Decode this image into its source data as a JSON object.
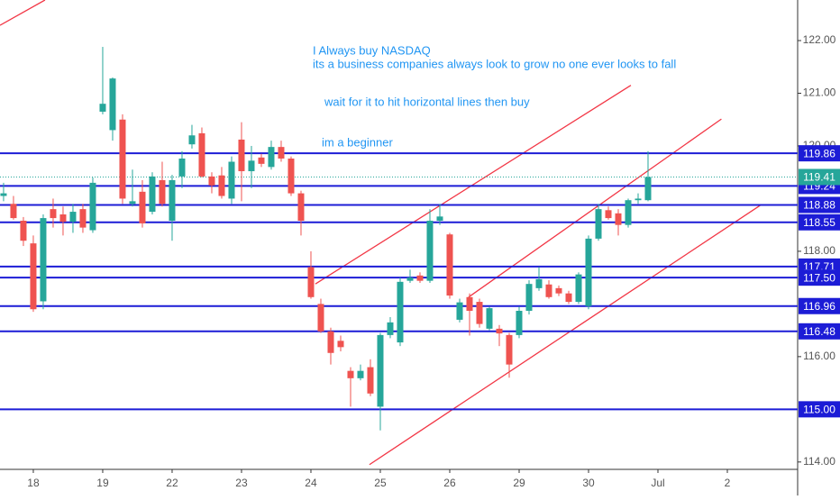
{
  "chart_data": {
    "type": "candlestick",
    "annotations": [
      "I Always buy NASDAQ",
      "its a business companies always look to grow no one ever looks to fall",
      "wait for it to hit horizontal lines then buy",
      "im a beginner"
    ],
    "x": [
      -3,
      -2,
      -1,
      0,
      1,
      2,
      3,
      4,
      5,
      6,
      7,
      8,
      9,
      10,
      11,
      12,
      13,
      14,
      15,
      16,
      17,
      18,
      19,
      20,
      21,
      22,
      23,
      24,
      25,
      26,
      27,
      28,
      29,
      30,
      31,
      32,
      33,
      34,
      35,
      36,
      37,
      38,
      39,
      40,
      41,
      42,
      43,
      44,
      45,
      46,
      47,
      48,
      49,
      50,
      51,
      52,
      53,
      54,
      55,
      56,
      57,
      58,
      59,
      60,
      61,
      62
    ],
    "open": [
      119.05,
      118.9,
      118.58,
      118.15,
      117.05,
      118.8,
      118.7,
      118.56,
      118.8,
      118.4,
      120.65,
      120.3,
      120.5,
      118.9,
      119.13,
      118.75,
      119.35,
      118.58,
      119.42,
      120.03,
      120.24,
      119.42,
      119.44,
      119.0,
      120.12,
      119.52,
      119.78,
      119.6,
      119.98,
      119.76,
      119.1,
      117.7,
      117.0,
      116.48,
      116.3,
      115.73,
      115.59,
      115.8,
      115.05,
      116.41,
      116.27,
      117.44,
      117.54,
      117.44,
      118.58,
      118.32,
      116.7,
      117.13,
      117.04,
      116.53,
      116.53,
      116.41,
      116.41,
      116.87,
      117.3,
      117.37,
      117.3,
      117.2,
      117.04,
      116.96,
      118.24,
      118.78,
      118.72,
      118.5,
      118.97,
      118.97
    ],
    "high": [
      119.3,
      119.05,
      118.65,
      118.3,
      118.7,
      119.0,
      118.85,
      118.9,
      118.9,
      119.4,
      121.88,
      121.3,
      120.6,
      119.55,
      119.35,
      119.5,
      119.7,
      119.45,
      119.9,
      120.4,
      120.35,
      119.5,
      119.6,
      119.8,
      120.45,
      120.0,
      119.85,
      120.1,
      120.1,
      119.8,
      119.15,
      118.0,
      117.1,
      116.55,
      116.4,
      115.8,
      115.85,
      115.95,
      116.45,
      116.75,
      117.5,
      117.65,
      117.6,
      118.8,
      118.9,
      118.35,
      117.1,
      117.2,
      117.1,
      116.95,
      116.6,
      116.45,
      116.95,
      117.45,
      117.7,
      117.45,
      117.35,
      117.25,
      117.6,
      118.3,
      118.9,
      118.85,
      118.8,
      119.0,
      119.1,
      119.9
    ],
    "low": [
      118.95,
      118.6,
      118.1,
      116.85,
      116.9,
      118.45,
      118.3,
      118.35,
      118.35,
      118.35,
      120.6,
      120.1,
      118.9,
      118.85,
      118.45,
      118.7,
      118.85,
      118.2,
      119.2,
      119.95,
      119.4,
      119.1,
      119.0,
      118.9,
      118.95,
      119.2,
      119.6,
      119.55,
      119.7,
      119.05,
      118.3,
      117.1,
      116.45,
      115.85,
      116.1,
      115.05,
      115.55,
      115.25,
      114.6,
      116.35,
      116.2,
      117.4,
      117.4,
      117.4,
      118.5,
      117.1,
      116.65,
      116.4,
      116.55,
      116.5,
      116.2,
      115.6,
      116.35,
      116.8,
      117.25,
      117.1,
      117.15,
      117.0,
      117.0,
      116.9,
      118.2,
      118.6,
      118.3,
      118.45,
      118.9,
      118.95
    ],
    "close": [
      119.1,
      118.63,
      118.2,
      116.9,
      118.63,
      118.63,
      118.56,
      118.75,
      118.45,
      119.3,
      120.8,
      121.28,
      119.0,
      118.95,
      118.53,
      119.42,
      118.9,
      119.35,
      119.76,
      120.2,
      119.42,
      119.25,
      119.05,
      119.7,
      119.52,
      119.72,
      119.66,
      119.98,
      119.76,
      119.1,
      118.58,
      117.13,
      116.48,
      116.07,
      116.18,
      115.59,
      115.73,
      115.3,
      116.41,
      116.65,
      117.42,
      117.5,
      117.44,
      118.58,
      118.66,
      117.16,
      117.03,
      116.87,
      116.62,
      116.92,
      116.44,
      115.85,
      116.87,
      117.38,
      117.47,
      117.13,
      117.2,
      117.04,
      117.56,
      118.24,
      118.8,
      118.63,
      118.5,
      118.97,
      119.0,
      119.41
    ],
    "up_color": "#26a69a",
    "down_color": "#ef5350",
    "xlim": [
      -3.36,
      77.09
    ],
    "ylim": [
      113.86,
      122.77
    ],
    "xticks": [
      {
        "value": 0,
        "label": "18"
      },
      {
        "value": 7,
        "label": "19"
      },
      {
        "value": 14,
        "label": "22"
      },
      {
        "value": 21,
        "label": "23"
      },
      {
        "value": 28,
        "label": "24"
      },
      {
        "value": 35,
        "label": "25"
      },
      {
        "value": 42,
        "label": "26"
      },
      {
        "value": 49,
        "label": "29"
      },
      {
        "value": 56,
        "label": "30"
      },
      {
        "value": 63,
        "label": "Jul"
      },
      {
        "value": 70,
        "label": "2"
      }
    ],
    "yticks": [
      {
        "value": 114,
        "label": "114.00"
      },
      {
        "value": 116,
        "label": "116.00"
      },
      {
        "value": 118,
        "label": "118.00"
      },
      {
        "value": 120,
        "label": "120.00"
      },
      {
        "value": 121,
        "label": "121.00"
      },
      {
        "value": 122,
        "label": "122.00"
      }
    ],
    "levels": [
      119.86,
      119.24,
      118.88,
      118.55,
      117.71,
      {
        "value": 117.5,
        "label": "117.50"
      },
      116.96,
      116.48,
      {
        "value": 115,
        "label": "115.00"
      }
    ],
    "level_color": "#1c1cd6",
    "last_price": 119.41,
    "trend_lines": [
      {
        "x": [
          -3.36,
          1.18
        ],
        "y": [
          122.29,
          122.77
        ]
      },
      {
        "x": [
          28.45,
          60.27
        ],
        "y": [
          117.38,
          121.15
        ]
      },
      {
        "x": [
          43.9,
          69.4
        ],
        "y": [
          117.13,
          120.51
        ]
      },
      {
        "x": [
          33.9,
          73.3
        ],
        "y": [
          113.95,
          118.87
        ]
      }
    ],
    "trend_color": "#f23645"
  }
}
